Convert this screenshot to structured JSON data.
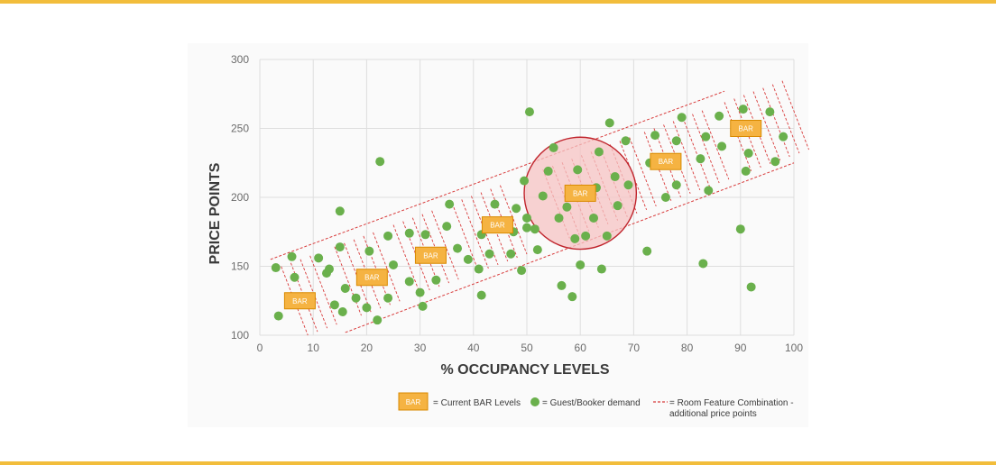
{
  "colors": {
    "accent": "#f2bd3b",
    "bar_fill": "#f5b342",
    "bar_stroke": "#d98a00",
    "dot": "#6ab04c",
    "circle_fill": "#f6c3c3",
    "circle_stroke": "#c0242c",
    "dashed": "#d83a3a",
    "grid": "#dedede"
  },
  "chart_data": {
    "type": "scatter",
    "xlabel": "% OCCUPANCY LEVELS",
    "ylabel": "PRICE POINTS",
    "xlim": [
      0,
      100
    ],
    "ylim": [
      100,
      300
    ],
    "xticks": [
      "0",
      "10",
      "20",
      "30",
      "40",
      "50",
      "60",
      "70",
      "80",
      "90",
      "100"
    ],
    "yticks": [
      "100",
      "150",
      "200",
      "250",
      "300"
    ],
    "grid": true,
    "series": [
      {
        "name": "Guest/Booker demand",
        "points": [
          [
            3,
            149
          ],
          [
            3.5,
            114
          ],
          [
            6,
            157
          ],
          [
            6.5,
            142
          ],
          [
            11,
            156
          ],
          [
            12.5,
            145
          ],
          [
            13,
            148
          ],
          [
            14,
            122
          ],
          [
            15,
            164
          ],
          [
            15,
            190
          ],
          [
            15.5,
            117
          ],
          [
            16,
            134
          ],
          [
            18,
            127
          ],
          [
            20,
            120
          ],
          [
            20.5,
            161
          ],
          [
            22,
            111
          ],
          [
            22.5,
            226
          ],
          [
            24,
            127
          ],
          [
            24,
            172
          ],
          [
            25,
            151
          ],
          [
            28,
            139
          ],
          [
            28,
            174
          ],
          [
            30,
            131
          ],
          [
            30.5,
            121
          ],
          [
            31,
            173
          ],
          [
            33,
            140
          ],
          [
            35,
            179
          ],
          [
            35.5,
            195
          ],
          [
            37,
            163
          ],
          [
            39,
            155
          ],
          [
            41,
            148
          ],
          [
            41.5,
            129
          ],
          [
            41.5,
            173
          ],
          [
            43,
            159
          ],
          [
            44,
            195
          ],
          [
            47,
            159
          ],
          [
            47.5,
            175
          ],
          [
            48,
            192
          ],
          [
            49,
            147
          ],
          [
            49.5,
            212
          ],
          [
            50,
            185
          ],
          [
            50,
            178
          ],
          [
            50.5,
            262
          ],
          [
            51.5,
            177
          ],
          [
            52,
            162
          ],
          [
            53,
            201
          ],
          [
            54,
            219
          ],
          [
            55,
            236
          ],
          [
            56,
            185
          ],
          [
            56.5,
            136
          ],
          [
            57.5,
            193
          ],
          [
            58.5,
            128
          ],
          [
            59,
            170
          ],
          [
            59.5,
            220
          ],
          [
            60,
            151
          ],
          [
            61,
            172
          ],
          [
            62.5,
            185
          ],
          [
            63,
            207
          ],
          [
            63.5,
            233
          ],
          [
            64,
            148
          ],
          [
            65,
            172
          ],
          [
            65.5,
            254
          ],
          [
            66.5,
            215
          ],
          [
            67,
            194
          ],
          [
            68.5,
            241
          ],
          [
            69,
            209
          ],
          [
            72.5,
            161
          ],
          [
            73,
            225
          ],
          [
            74,
            245
          ],
          [
            76,
            200
          ],
          [
            78,
            241
          ],
          [
            78,
            209
          ],
          [
            79,
            258
          ],
          [
            82.5,
            228
          ],
          [
            83,
            152
          ],
          [
            83.5,
            244
          ],
          [
            84,
            205
          ],
          [
            86,
            259
          ],
          [
            86.5,
            237
          ],
          [
            90,
            177
          ],
          [
            90.5,
            264
          ],
          [
            91,
            219
          ],
          [
            91.5,
            232
          ],
          [
            92,
            135
          ],
          [
            95.5,
            262
          ],
          [
            96.5,
            226
          ],
          [
            98,
            244
          ]
        ]
      }
    ],
    "bar_levels": [
      {
        "label": "BAR",
        "x": 7.5,
        "y": 125
      },
      {
        "label": "BAR",
        "x": 21,
        "y": 142
      },
      {
        "label": "BAR",
        "x": 32,
        "y": 158
      },
      {
        "label": "BAR",
        "x": 44.5,
        "y": 180
      },
      {
        "label": "BAR",
        "x": 60,
        "y": 203
      },
      {
        "label": "BAR",
        "x": 76,
        "y": 226
      },
      {
        "label": "BAR",
        "x": 91,
        "y": 250
      }
    ],
    "highlight_circle": {
      "center": [
        60,
        203
      ],
      "radius_units": 10.5
    },
    "band": {
      "upper": [
        [
          2,
          155
        ],
        [
          87,
          277
        ]
      ],
      "lower": [
        [
          16,
          102
        ],
        [
          100,
          225
        ]
      ]
    },
    "hatch_groups": [
      {
        "x0": 4,
        "x1": 11,
        "step": 1.8
      },
      {
        "x0": 14,
        "x1": 22,
        "step": 1.8
      },
      {
        "x0": 25,
        "x1": 33,
        "step": 1.8
      },
      {
        "x0": 36,
        "x1": 46,
        "step": 1.8
      },
      {
        "x0": 53,
        "x1": 70,
        "step": 1.8
      },
      {
        "x0": 72,
        "x1": 83,
        "step": 1.8
      },
      {
        "x0": 87,
        "x1": 98,
        "step": 1.8
      }
    ]
  },
  "legend": {
    "bar_icon_label": "BAR",
    "bar_text": "= Current BAR Levels",
    "dot_text": "= Guest/Booker demand",
    "dash_text_line1": "= Room Feature Combination -",
    "dash_text_line2": "additional price points"
  }
}
